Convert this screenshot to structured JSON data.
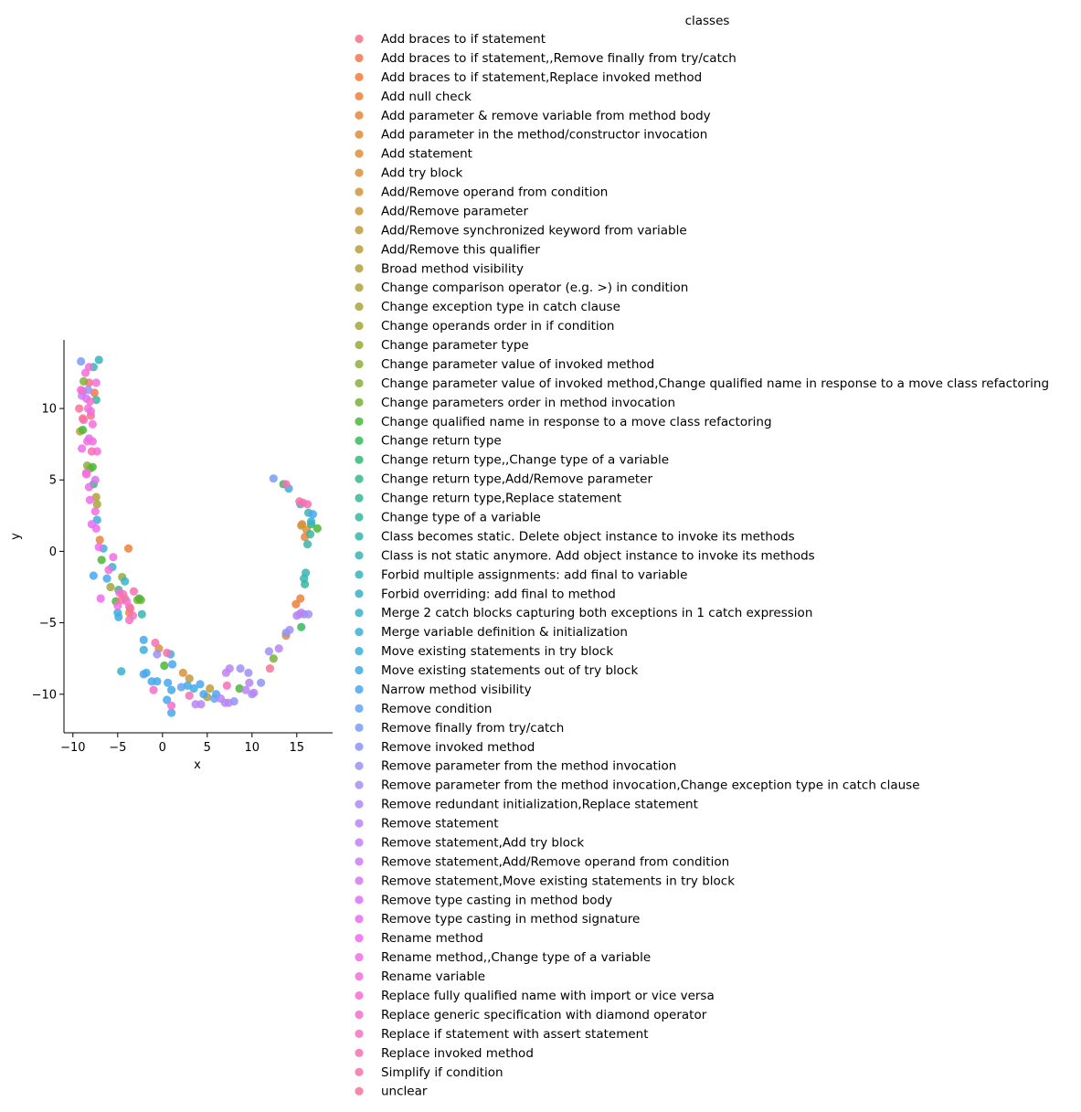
{
  "chart_data": {
    "type": "scatter",
    "title": "",
    "xlabel": "x",
    "ylabel": "y",
    "xlim": [
      -11,
      19
    ],
    "ylim": [
      -12.7,
      14.8
    ],
    "xticks": [
      -10,
      -5,
      0,
      5,
      10,
      15
    ],
    "yticks": [
      -10,
      -5,
      0,
      5,
      10
    ],
    "grid": false,
    "legend": {
      "title": "classes",
      "placement": "right outside"
    },
    "series": [
      {
        "name": "Add braces to if statement",
        "color": "#f77189",
        "points": [
          [
            -8.2,
            11.8
          ],
          [
            -8.0,
            9.5
          ]
        ]
      },
      {
        "name": "Add braces to if statement,,Remove finally from try/catch",
        "color": "#f7754f",
        "points": [
          [
            -7.6,
            11.1
          ]
        ]
      },
      {
        "name": "Add braces to if statement,Replace invoked method",
        "color": "#f47b3a",
        "points": [
          [
            -8.9,
            11.2
          ]
        ]
      },
      {
        "name": "Add null check",
        "color": "#ef8039",
        "points": [
          [
            -3.8,
            0.2
          ],
          [
            14.9,
            -3.7
          ],
          [
            15.4,
            -3.3
          ]
        ]
      },
      {
        "name": "Add parameter & remove variable from method body",
        "color": "#e98539",
        "points": [
          [
            15.9,
            1.0
          ],
          [
            15.6,
            1.9
          ],
          [
            -7.0,
            0.8
          ]
        ]
      },
      {
        "name": "Add parameter in the method/constructor invocation",
        "color": "#e28b39",
        "points": [
          [
            13.8,
            -5.9
          ]
        ]
      },
      {
        "name": "Add statement",
        "color": "#dc8e39",
        "points": [
          [
            16.1,
            1.5
          ],
          [
            -3.7,
            -4.3
          ]
        ]
      },
      {
        "name": "Add try block",
        "color": "#d69239",
        "points": [
          [
            2.3,
            -8.5
          ],
          [
            -0.4,
            -6.8
          ]
        ]
      },
      {
        "name": "Add/Remove operand from condition",
        "color": "#cf9539",
        "points": [
          [
            15.5,
            1.8
          ],
          [
            -4.2,
            -3.3
          ]
        ]
      },
      {
        "name": "Add/Remove parameter",
        "color": "#c89839",
        "points": [
          [
            3.0,
            -8.9
          ]
        ]
      },
      {
        "name": "Add/Remove synchronized keyword from variable",
        "color": "#c19b38",
        "points": [
          [
            5.3,
            -9.6
          ]
        ]
      },
      {
        "name": "Add/Remove this qualifier",
        "color": "#bb9e38",
        "points": [
          [
            -9.2,
            8.4
          ]
        ]
      },
      {
        "name": "Broad method visibility",
        "color": "#b5a038",
        "points": [
          [
            -7.4,
            3.8
          ]
        ]
      },
      {
        "name": "Change comparison operator (e.g. >) in condition",
        "color": "#aea338",
        "points": [
          [
            5.0,
            -10.2
          ]
        ]
      },
      {
        "name": "Change exception type in catch clause",
        "color": "#a8a638",
        "points": [
          [
            -7.3,
            3.3
          ]
        ]
      },
      {
        "name": "Change operands order in if condition",
        "color": "#a1a838",
        "points": [
          [
            -5.8,
            -2.5
          ]
        ]
      },
      {
        "name": "Change parameter type",
        "color": "#99aa38",
        "points": [
          [
            -4.5,
            -1.8
          ]
        ]
      },
      {
        "name": "Change parameter value of invoked method",
        "color": "#90ad38",
        "points": [
          [
            -8.4,
            6.0
          ],
          [
            -2.8,
            -3.4
          ]
        ]
      },
      {
        "name": "Change parameter value of invoked method,Change qualified name in response to a move class refactoring",
        "color": "#86b038",
        "points": [
          [
            -8.8,
            11.9
          ]
        ]
      },
      {
        "name": "Change parameters order in method invocation",
        "color": "#79b338",
        "points": [
          [
            -8.1,
            5.8
          ],
          [
            -2.4,
            -3.4
          ],
          [
            12.4,
            -7.5
          ]
        ]
      },
      {
        "name": "Change qualified name in response to a move class refactoring",
        "color": "#4cb738",
        "points": [
          [
            -5.2,
            -3.5
          ],
          [
            0.2,
            -8.0
          ],
          [
            8.6,
            -9.6
          ],
          [
            17.3,
            1.6
          ],
          [
            -2.6,
            -3.3
          ],
          [
            -8.9,
            8.5
          ],
          [
            -7.8,
            5.9
          ],
          [
            -6.8,
            -0.6
          ]
        ]
      },
      {
        "name": "Change return type",
        "color": "#36ba5e",
        "points": [
          [
            15.5,
            -5.3
          ],
          [
            16.6,
            1.9
          ],
          [
            13.5,
            4.7
          ]
        ]
      },
      {
        "name": "Change return type,,Change type of a variable",
        "color": "#35b978",
        "points": [
          [
            -7.7,
            4.7
          ]
        ]
      },
      {
        "name": "Change return type,Add/Remove parameter",
        "color": "#35b889",
        "points": [
          [
            -4.9,
            -2.7
          ]
        ]
      },
      {
        "name": "Change return type,Replace statement",
        "color": "#36b796",
        "points": [
          [
            15.9,
            -2.3
          ]
        ]
      },
      {
        "name": "Change type of a variable",
        "color": "#37b6a0",
        "points": [
          [
            16.5,
            1.2
          ],
          [
            -7.4,
            10.6
          ]
        ]
      },
      {
        "name": "Class becomes static. Delete object instance to invoke its methods",
        "color": "#38b5aa",
        "points": [
          [
            16.2,
            0.5
          ]
        ]
      },
      {
        "name": "Class is not static anymore. Add object instance to invoke its methods",
        "color": "#38b4b4",
        "points": [
          [
            16.0,
            -1.5
          ],
          [
            -7.7,
            12.9
          ],
          [
            -2.3,
            -4.4
          ],
          [
            16.3,
            2.7
          ],
          [
            15.8,
            -1.9
          ]
        ]
      },
      {
        "name": "Forbid multiple assignments: add final to variable",
        "color": "#39b3bd",
        "points": [
          [
            -7.1,
            13.4
          ]
        ]
      },
      {
        "name": "Forbid overriding: add final to method",
        "color": "#3ab2c5",
        "points": [
          [
            -4.6,
            -8.4
          ]
        ]
      },
      {
        "name": "Merge 2 catch blocks capturing both exceptions in 1 catch expression",
        "color": "#3ab1cc",
        "points": [
          [
            15.4,
            3.3
          ],
          [
            -4.2,
            -2.1
          ]
        ]
      },
      {
        "name": "Merge variable definition & initialization",
        "color": "#3bb0d3",
        "points": [
          [
            -5.6,
            -1.1
          ],
          [
            16.6,
            2.1
          ]
        ]
      },
      {
        "name": "Move existing statements in try block",
        "color": "#3daedd",
        "points": [
          [
            14.1,
            4.4
          ],
          [
            -7.3,
            2.2
          ],
          [
            0.9,
            -7.2
          ],
          [
            -6.6,
            0.2
          ],
          [
            -5.0,
            -4.3
          ],
          [
            -2.1,
            -6.9
          ]
        ]
      },
      {
        "name": "Move existing statements out of try block",
        "color": "#40ace8",
        "points": [
          [
            -0.6,
            -9.1
          ],
          [
            1.0,
            -9.7
          ],
          [
            -4.9,
            -4.6
          ],
          [
            3.5,
            -9.6
          ],
          [
            -1.8,
            -8.5
          ],
          [
            2.8,
            -9.4
          ]
        ]
      },
      {
        "name": "Narrow method visibility",
        "color": "#48a7f1",
        "points": [
          [
            -2.1,
            -8.6
          ],
          [
            0.5,
            -10.4
          ],
          [
            1.1,
            -7.9
          ],
          [
            4.2,
            -9.3
          ],
          [
            -7.7,
            -1.7
          ],
          [
            0.6,
            -9.2
          ],
          [
            -1.2,
            -9.1
          ],
          [
            1.0,
            -11.3
          ],
          [
            6.0,
            -10.0
          ],
          [
            -6.2,
            -1.9
          ],
          [
            -2.1,
            -6.2
          ],
          [
            4.6,
            -10.0
          ],
          [
            16.8,
            2.6
          ]
        ]
      },
      {
        "name": "Remove condition",
        "color": "#62a2f4",
        "points": [
          [
            2.1,
            -9.5
          ],
          [
            5.8,
            -10.3
          ]
        ]
      },
      {
        "name": "Remove finally from try/catch",
        "color": "#7a9cf6",
        "points": [
          [
            12.4,
            5.1
          ],
          [
            -9.1,
            13.3
          ]
        ]
      },
      {
        "name": "Remove invoked method",
        "color": "#8c97f5",
        "points": [
          [
            13.8,
            -5.7
          ],
          [
            11.0,
            -9.2
          ],
          [
            8.0,
            -10.5
          ]
        ]
      },
      {
        "name": "Remove parameter from the method invocation",
        "color": "#9b92f5",
        "points": [
          [
            -8.3,
            11.3
          ],
          [
            9.6,
            -8.5
          ],
          [
            14.2,
            -5.5
          ],
          [
            8.7,
            -8.2
          ],
          [
            15.8,
            -4.4
          ],
          [
            -0.6,
            -7.2
          ]
        ]
      },
      {
        "name": "Remove parameter from the method invocation,Change exception type in catch clause",
        "color": "#a68ef5",
        "points": [
          [
            10.0,
            -10.0
          ],
          [
            11.9,
            -7.0
          ],
          [
            16.3,
            -4.4
          ]
        ]
      },
      {
        "name": "Remove redundant initialization,Replace statement",
        "color": "#b089f5",
        "points": [
          [
            15.0,
            -4.5
          ]
        ]
      },
      {
        "name": "Remove statement",
        "color": "#b985f5",
        "points": [
          [
            4.3,
            -10.7
          ],
          [
            13.0,
            -6.8
          ],
          [
            7.4,
            -10.6
          ],
          [
            9.7,
            -9.2
          ],
          [
            3.7,
            -10.7
          ],
          [
            10.2,
            -9.9
          ],
          [
            7.0,
            -10.6
          ],
          [
            9.3,
            -9.7
          ],
          [
            6.5,
            -10.3
          ],
          [
            15.3,
            -4.4
          ],
          [
            7.5,
            -8.2
          ],
          [
            15.5,
            -4.3
          ]
        ]
      },
      {
        "name": "Remove statement,Add try block",
        "color": "#c280f5",
        "points": [
          [
            7.1,
            -8.5
          ]
        ]
      },
      {
        "name": "Remove statement,Add/Remove operand from condition",
        "color": "#cb7cf5",
        "points": [
          [
            -9.0,
            10.9
          ]
        ]
      },
      {
        "name": "Remove statement,Move existing statements in try block",
        "color": "#d477f5",
        "points": [
          [
            -8.5,
            10.7
          ]
        ]
      },
      {
        "name": "Remove type casting in method body",
        "color": "#dd73f5",
        "points": [
          [
            -7.5,
            5.0
          ]
        ]
      },
      {
        "name": "Remove type casting in method signature",
        "color": "#e66ff5",
        "points": [
          [
            -7.9,
            1.9
          ],
          [
            -8.2,
            7.9
          ]
        ]
      },
      {
        "name": "Rename method",
        "color": "#ef6bef",
        "points": [
          [
            -8.1,
            3.6
          ],
          [
            -8.2,
            4.5
          ],
          [
            -6.9,
            -3.3
          ],
          [
            -7.4,
            1.6
          ],
          [
            -7.1,
            0.3
          ]
        ]
      },
      {
        "name": "Rename method,,Change type of a variable",
        "color": "#f16ce6",
        "points": [
          [
            -9.0,
            7.2
          ]
        ]
      },
      {
        "name": "Rename variable",
        "color": "#f36ddd",
        "points": [
          [
            -5.0,
            -3.8
          ],
          [
            -7.8,
            7.7
          ],
          [
            -4.8,
            -2.9
          ],
          [
            -8.5,
            5.4
          ],
          [
            -7.4,
            11.8
          ],
          [
            -8.2,
            12.9
          ],
          [
            -5.5,
            -0.4
          ],
          [
            -6.0,
            -1.3
          ],
          [
            -7.3,
            7.0
          ],
          [
            -7.8,
            8.9
          ],
          [
            -8.6,
            12.5
          ],
          [
            -9.1,
            11.3
          ],
          [
            -8.3,
            10.0
          ],
          [
            -7.5,
            2.8
          ],
          [
            -8.0,
            9.8
          ],
          [
            -8.5,
            5.5
          ],
          [
            -8.8,
            9.2
          ],
          [
            -8.4,
            7.7
          ]
        ]
      },
      {
        "name": "Replace fully qualified name with import or vice versa",
        "color": "#f56ed5",
        "points": [
          [
            -4.0,
            -3.5
          ],
          [
            -8.1,
            10.5
          ],
          [
            -3.7,
            -3.9
          ]
        ]
      },
      {
        "name": "Replace generic specification with diamond operator",
        "color": "#f66fcb",
        "points": [
          [
            1.0,
            -10.8
          ],
          [
            -1.0,
            -9.7
          ]
        ]
      },
      {
        "name": "Replace if statement with assert statement",
        "color": "#f670c0",
        "points": [
          [
            -3.3,
            -4.5
          ],
          [
            -3.7,
            -4.8
          ]
        ]
      },
      {
        "name": "Replace invoked method",
        "color": "#f671b5",
        "points": [
          [
            -4.4,
            -3.0
          ],
          [
            -3.2,
            -2.8
          ],
          [
            7.2,
            -9.4
          ],
          [
            -0.8,
            -6.4
          ],
          [
            -7.9,
            7.0
          ],
          [
            13.8,
            4.7
          ],
          [
            0.5,
            -7.1
          ],
          [
            3.0,
            -10.1
          ],
          [
            16.2,
            3.3
          ],
          [
            15.7,
            3.4
          ]
        ]
      },
      {
        "name": "Simplify if condition",
        "color": "#f672a7",
        "points": [
          [
            -4.6,
            -3.4
          ],
          [
            15.3,
            3.5
          ]
        ]
      },
      {
        "name": "unclear",
        "color": "#f77396",
        "points": [
          [
            -8.9,
            9.3
          ],
          [
            12.0,
            -8.2
          ],
          [
            -9.3,
            10.0
          ],
          [
            -3.6,
            -4.0
          ]
        ]
      }
    ]
  }
}
